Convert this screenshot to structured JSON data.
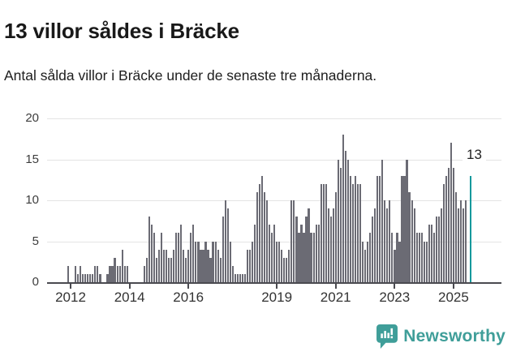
{
  "title": "13 villor såldes i Bräcke",
  "subtitle": "Antal sålda villor i Bräcke under de senaste tre månaderna.",
  "branding": {
    "name": "Newsworthy"
  },
  "colors": {
    "bar": "#6b6b74",
    "highlight": "#12999c",
    "gridline": "#e4e4e4",
    "axis": "#4a4a50",
    "brand": "#3f9e99"
  },
  "chart_data": {
    "type": "bar",
    "title": "13 villor såldes i Bräcke",
    "subtitle": "Antal sålda villor i Bräcke under de senaste tre månaderna.",
    "frequency": "monthly",
    "start_month": "2011-12",
    "end_month": "2025-08",
    "ylim": [
      0,
      20
    ],
    "y_ticks": [
      0,
      5,
      10,
      15,
      20
    ],
    "grid": true,
    "x_tick_labels": [
      "2012",
      "2014",
      "2016",
      "2019",
      "2021",
      "2023",
      "2025"
    ],
    "x_ticks": [
      {
        "label": "2012",
        "index": 1
      },
      {
        "label": "2014",
        "index": 25
      },
      {
        "label": "2016",
        "index": 49
      },
      {
        "label": "2019",
        "index": 85
      },
      {
        "label": "2021",
        "index": 109
      },
      {
        "label": "2023",
        "index": 133
      },
      {
        "label": "2025",
        "index": 157
      }
    ],
    "values": [
      2,
      0,
      0,
      2,
      1,
      2,
      1,
      1,
      1,
      1,
      1,
      2,
      2,
      1,
      0,
      0,
      1,
      2,
      2,
      3,
      2,
      2,
      4,
      2,
      2,
      0,
      0,
      0,
      0,
      0,
      0,
      2,
      3,
      8,
      7,
      6,
      3,
      4,
      6,
      4,
      4,
      3,
      3,
      4,
      6,
      6,
      7,
      4,
      3,
      4,
      6,
      7,
      5,
      5,
      4,
      4,
      5,
      4,
      3,
      5,
      5,
      4,
      3,
      8,
      10,
      9,
      5,
      2,
      1,
      1,
      1,
      1,
      1,
      4,
      4,
      5,
      7,
      11,
      12,
      13,
      11,
      10,
      7,
      6,
      7,
      5,
      5,
      4,
      3,
      3,
      4,
      10,
      10,
      8,
      6,
      7,
      6,
      8,
      9,
      6,
      6,
      7,
      7,
      12,
      12,
      12,
      9,
      8,
      9,
      11,
      15,
      14,
      18,
      16,
      15,
      13,
      12,
      13,
      12,
      12,
      5,
      4,
      5,
      6,
      8,
      9,
      13,
      13,
      15,
      10,
      9,
      10,
      6,
      4,
      6,
      5,
      13,
      13,
      15,
      11,
      10,
      9,
      6,
      6,
      6,
      5,
      5,
      7,
      7,
      6,
      8,
      8,
      9,
      12,
      13,
      14,
      17,
      14,
      11,
      9,
      10,
      9,
      10,
      null,
      13
    ],
    "highlight_index": 164,
    "highlight_value": 13,
    "highlight_label": "13"
  }
}
